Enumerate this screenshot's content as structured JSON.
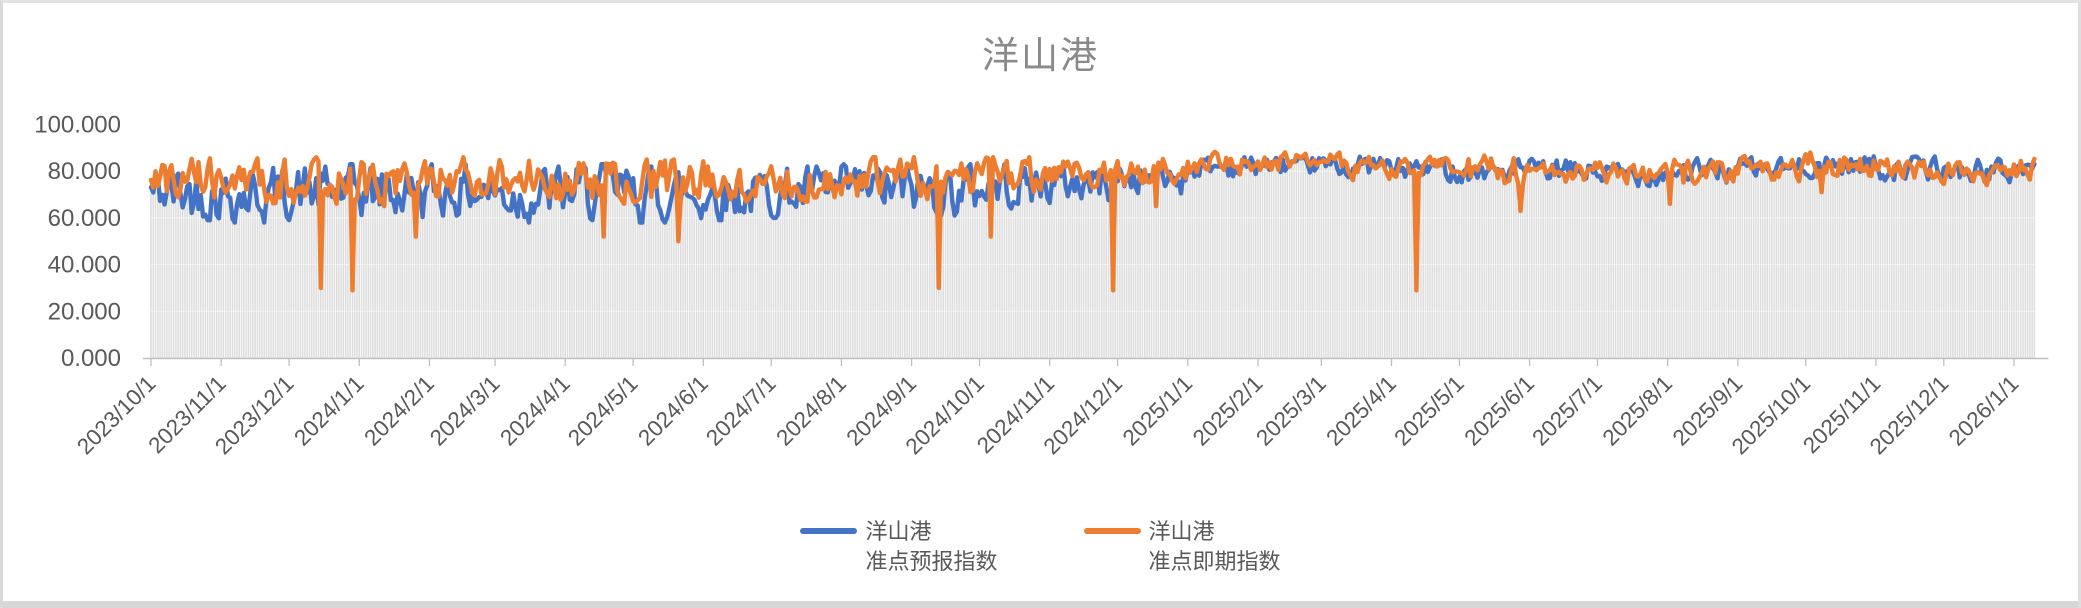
{
  "window": {
    "background": "#ffffff",
    "frame_color": "#d9d9d9"
  },
  "chart": {
    "title_color": "#8a8a8a",
    "axis_text_color": "#595959",
    "axis_line_color": "#bfbfbf",
    "legend": [
      {
        "line1": "洋山港",
        "line2": "准点预报指数",
        "color": "#4472C4"
      },
      {
        "line1": "洋山港",
        "line2": "准点即期指数",
        "color": "#ED7D31"
      }
    ]
  },
  "chart_data": {
    "type": "line",
    "title": "洋山港",
    "x_start": "2023/10/1",
    "x_end": "2026/1/10",
    "x_tick_labels": [
      "2023/10/1",
      "2023/11/1",
      "2023/12/1",
      "2024/1/1",
      "2024/2/1",
      "2024/3/1",
      "2024/4/1",
      "2024/5/1",
      "2024/6/1",
      "2024/7/1",
      "2024/8/1",
      "2024/9/1",
      "2024/10/1",
      "2024/11/1",
      "2024/12/1",
      "2025/1/1",
      "2025/2/1",
      "2025/3/1",
      "2025/4/1",
      "2025/5/1",
      "2025/6/1",
      "2025/7/1",
      "2025/8/1",
      "2025/9/1",
      "2025/10/1",
      "2025/11/1",
      "2025/12/1",
      "2026/1/1"
    ],
    "ylim": [
      0,
      100
    ],
    "y_tick_labels": [
      "0.000",
      "20.000",
      "40.000",
      "60.000",
      "80.000",
      "100.000"
    ],
    "grid": false,
    "legend_position": "bottom",
    "resolution": "daily",
    "series": [
      {
        "name": "洋山港 准点预报指数",
        "color": "#4472C4",
        "monthly_mean": [
          71,
          70,
          71,
          71,
          72,
          70,
          71,
          70,
          70,
          71,
          72,
          72,
          74,
          75,
          77,
          82,
          83,
          82,
          81,
          80,
          80,
          79,
          80,
          81,
          83,
          81,
          80,
          81
        ],
        "monthly_range": [
          10,
          10,
          10,
          10,
          9,
          10,
          10,
          10,
          9,
          9,
          9,
          9,
          8,
          7,
          6,
          4,
          4,
          4,
          4,
          4,
          4,
          4,
          4,
          4,
          4,
          4,
          4,
          3
        ],
        "min_clip": 55,
        "max_clip": 86.5,
        "anomalies": [
          {
            "date": "2025/10/8",
            "value": 74
          }
        ]
      },
      {
        "name": "洋山港 准点即期指数",
        "color": "#ED7D31",
        "monthly_mean": [
          77,
          76,
          76,
          75,
          77,
          76,
          76,
          75,
          76,
          76,
          77,
          77,
          78,
          79,
          80,
          83,
          84,
          82,
          81,
          80,
          80,
          79,
          79,
          81,
          83,
          81,
          80,
          81
        ],
        "monthly_range": [
          8,
          8,
          8,
          8,
          7,
          8,
          8,
          8,
          7,
          7,
          7,
          7,
          6,
          5,
          5,
          4,
          4,
          4,
          4,
          5,
          4,
          4,
          5,
          4,
          5,
          4,
          4,
          4
        ],
        "min_clip": 58,
        "max_clip": 88.5,
        "anomalies": [
          {
            "date": "2023/12/15",
            "value": 30
          },
          {
            "date": "2023/12/29",
            "value": 29
          },
          {
            "date": "2024/1/26",
            "value": 52
          },
          {
            "date": "2024/4/18",
            "value": 52
          },
          {
            "date": "2024/5/21",
            "value": 50
          },
          {
            "date": "2024/9/13",
            "value": 30
          },
          {
            "date": "2024/10/6",
            "value": 52
          },
          {
            "date": "2024/11/29",
            "value": 29
          },
          {
            "date": "2024/12/18",
            "value": 65
          },
          {
            "date": "2025/4/12",
            "value": 29
          },
          {
            "date": "2025/5/28",
            "value": 63
          },
          {
            "date": "2025/8/2",
            "value": 66
          },
          {
            "date": "2025/10/3",
            "value": 88
          },
          {
            "date": "2025/10/8",
            "value": 71
          }
        ]
      }
    ],
    "background_bars": {
      "present": true,
      "color": "#dbdbdb",
      "follows": "min(series)"
    },
    "noise_seed": 42
  }
}
